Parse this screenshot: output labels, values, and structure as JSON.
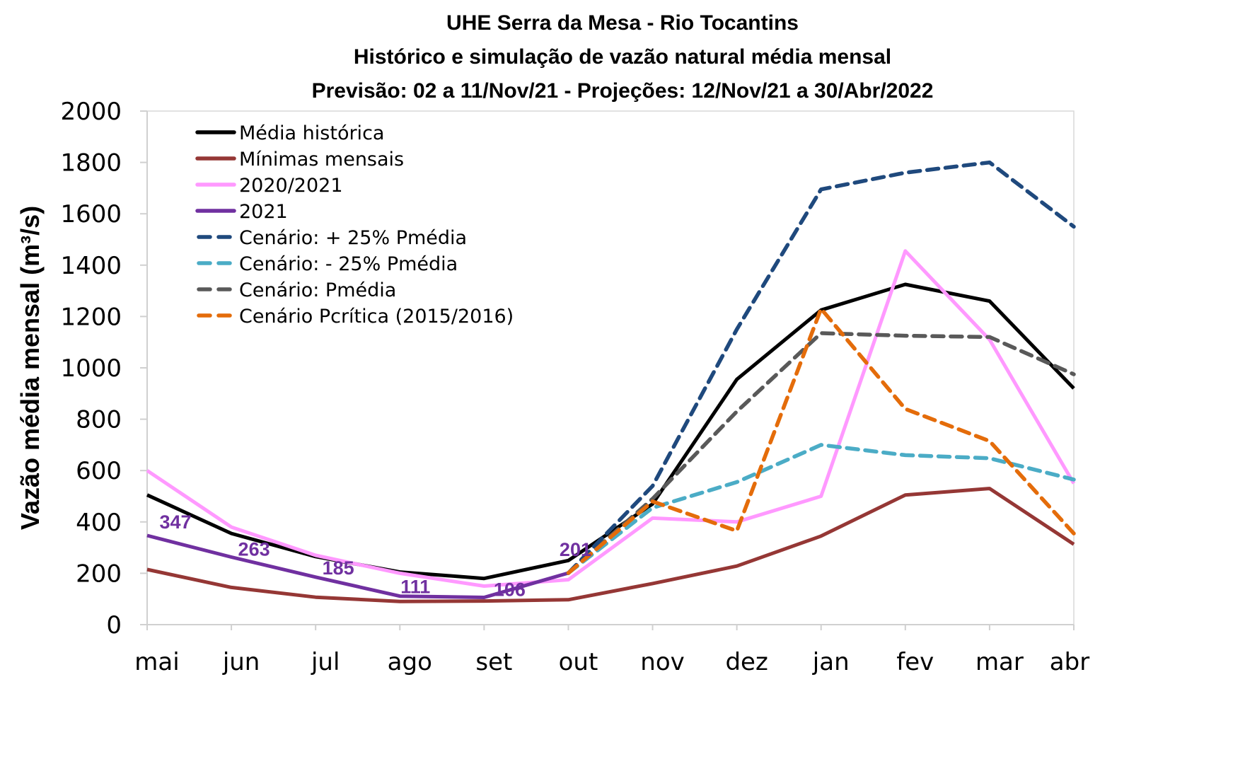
{
  "chart_data": {
    "type": "line",
    "title": "UHE Serra da Mesa - Rio Tocantins",
    "subtitle": "Histórico e simulação de vazão natural média mensal",
    "subtitle2": "Previsão: 02 a 11/Nov/21 - Projeções:  12/Nov/21 a 30/Abr/2022",
    "xlabel": "",
    "ylabel": "Vazão média mensal (m³/s)",
    "ylim": [
      0,
      2000
    ],
    "yticks": [
      0,
      200,
      400,
      600,
      800,
      1000,
      1200,
      1400,
      1600,
      1800,
      2000
    ],
    "grid": false,
    "legend_position": "top-left",
    "categories": [
      "mai",
      "jun",
      "jul",
      "ago",
      "set",
      "out",
      "nov",
      "dez",
      "jan",
      "fev",
      "mar",
      "abr"
    ],
    "series": [
      {
        "name": "Média histórica",
        "color": "#000000",
        "dash": "solid",
        "values": [
          505,
          355,
          265,
          205,
          180,
          250,
          470,
          955,
          1225,
          1325,
          1260,
          920
        ]
      },
      {
        "name": "Mínimas mensais",
        "color": "#953735",
        "dash": "solid",
        "values": [
          215,
          145,
          107,
          90,
          92,
          97,
          160,
          228,
          345,
          505,
          530,
          313
        ]
      },
      {
        "name": "2020/2021",
        "color": "#FF99FF",
        "dash": "solid",
        "values": [
          600,
          380,
          270,
          200,
          150,
          175,
          415,
          400,
          500,
          1455,
          1110,
          550
        ]
      },
      {
        "name": "2021",
        "color": "#7030A0",
        "dash": "solid",
        "values": [
          347,
          263,
          185,
          111,
          106,
          201,
          null,
          null,
          null,
          null,
          null,
          null
        ],
        "labels": [
          "347",
          "263",
          "185",
          "111",
          "106",
          "201"
        ]
      },
      {
        "name": "Cenário: + 25% Pmédia",
        "color": "#1F497D",
        "dash": "dashed",
        "values": [
          null,
          null,
          null,
          null,
          null,
          201,
          540,
          1150,
          1695,
          1760,
          1800,
          1550
        ]
      },
      {
        "name": "Cenário: - 25% Pmédia",
        "color": "#4BACC6",
        "dash": "dashed",
        "values": [
          null,
          null,
          null,
          null,
          null,
          201,
          455,
          555,
          700,
          660,
          648,
          565
        ]
      },
      {
        "name": "Cenário: Pmédia",
        "color": "#595959",
        "dash": "dashed",
        "values": [
          null,
          null,
          null,
          null,
          null,
          201,
          490,
          830,
          1135,
          1125,
          1120,
          975
        ]
      },
      {
        "name": "Cenário Pcrítica (2015/2016)",
        "color": "#E46C0A",
        "dash": "dashed",
        "values": [
          null,
          null,
          null,
          null,
          null,
          201,
          480,
          365,
          1230,
          840,
          715,
          355
        ]
      }
    ]
  }
}
